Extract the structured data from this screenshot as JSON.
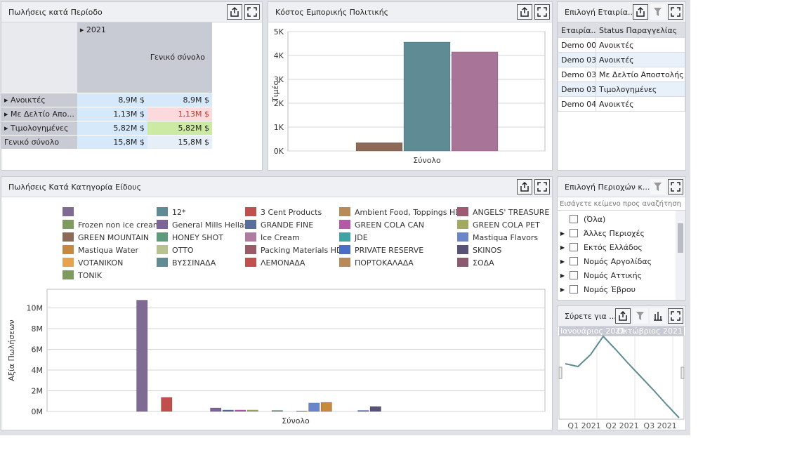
{
  "pivot": {
    "title": "Πωλήσεις κατά Περίοδο",
    "year": "2021",
    "total_header": "Γενικό σύνολο",
    "rows": [
      {
        "label": "Ανοικτές",
        "year": "8,9M $",
        "total": "8,9M $"
      },
      {
        "label": "Με Δελτίο Απο...",
        "year": "1,13M $",
        "total": "1,13M $"
      },
      {
        "label": "Τιμολογημένες",
        "year": "5,82M $",
        "total": "5,82M $"
      }
    ],
    "total_row": {
      "label": "Γενικό σύνολο",
      "year": "15,8M $",
      "total": "15,8M $"
    }
  },
  "company_filter": {
    "title": "Επιλογή Εταιρία...",
    "columns": [
      "Εταιρία...",
      "Status Παραγγελίας"
    ],
    "rows": [
      [
        "Demo 00",
        "Ανοικτές"
      ],
      [
        "Demo 03",
        "Ανοικτές"
      ],
      [
        "Demo 03",
        "Με Δελτίο Αποστολής"
      ],
      [
        "Demo 03",
        "Τιμολογημένες"
      ],
      [
        "Demo 04",
        "Ανοικτές"
      ]
    ]
  },
  "region_filter": {
    "title": "Επιλογή Περιοχών κ...",
    "search_placeholder": "Εισάγετε κείμενο προς αναζήτηση",
    "items": [
      "(Όλα)",
      "Άλλες Περιοχές",
      "Εκτός Ελλάδος",
      "Νομός Αργολίδας",
      "Νομός Αττικής",
      "Νομός Έβρου"
    ]
  },
  "chart_data": [
    {
      "type": "bar",
      "title": "Κόστος Εμπορικής Πολιτικής",
      "y_label": "Τιμές",
      "categories": [
        "Σύνολο"
      ],
      "series": [
        {
          "color": "#8d6a58",
          "values": [
            350
          ]
        },
        {
          "color": "#5f8b94",
          "values": [
            4560
          ]
        },
        {
          "color": "#a87498",
          "values": [
            4150
          ]
        }
      ],
      "ylim": [
        0,
        5000
      ],
      "yticks": [
        {
          "value": 0,
          "label": "0K"
        },
        {
          "value": 1000,
          "label": "1K"
        },
        {
          "value": 2000,
          "label": "2K"
        },
        {
          "value": 3000,
          "label": "3K"
        },
        {
          "value": 4000,
          "label": "4K"
        },
        {
          "value": 5000,
          "label": "5K"
        }
      ],
      "grid": true
    },
    {
      "type": "bar",
      "title": "Πωλήσεις Κατά Κατηγορία Είδους",
      "y_label": "Αξία Πωλήσεων",
      "categories": [
        "Σύνολο"
      ],
      "series": [
        {
          "name": null,
          "color": "#7f6a93",
          "values": [
            10750000
          ]
        },
        {
          "name": "12*",
          "color": "#5f8b94",
          "values": [
            0
          ]
        },
        {
          "name": "3 Cent Products",
          "color": "#c0504d",
          "values": [
            1360000
          ]
        },
        {
          "name": "Ambient Food, Toppings HD",
          "color": "#b88a58",
          "values": [
            0
          ]
        },
        {
          "name": "ANGELS' TREASURE",
          "color": "#9c5b72",
          "values": [
            0
          ]
        },
        {
          "name": "Frozen non ice cream",
          "color": "#7f9a5f",
          "values": [
            0
          ]
        },
        {
          "name": "General Mills Hellas",
          "color": "#7a6596",
          "values": [
            340000
          ]
        },
        {
          "name": "GRANDE FINE",
          "color": "#5a6e9a",
          "values": [
            140000
          ]
        },
        {
          "name": "GREEN COLA CAN",
          "color": "#b459a4",
          "values": [
            140000
          ]
        },
        {
          "name": "GREEN COLA PET",
          "color": "#a2a960",
          "values": [
            140000
          ]
        },
        {
          "name": "GREEN MOUNTAIN",
          "color": "#8d6a58",
          "values": [
            0
          ]
        },
        {
          "name": "HONEY SHOT",
          "color": "#5c9c7c",
          "values": [
            100000
          ]
        },
        {
          "name": "Ice Cream",
          "color": "#b07aa1",
          "values": [
            0
          ]
        },
        {
          "name": "JDE",
          "color": "#3fa3a3",
          "values": [
            50000
          ]
        },
        {
          "name": "Mastiqua Flavors",
          "color": "#6a86c8",
          "values": [
            820000
          ]
        },
        {
          "name": "Mastiqua Water",
          "color": "#c58a3e",
          "values": [
            880000
          ]
        },
        {
          "name": "OTTO",
          "color": "#b8c28e",
          "values": [
            0
          ]
        },
        {
          "name": "Packing Materials HD",
          "color": "#9a5a68",
          "values": [
            0
          ]
        },
        {
          "name": "PRIVATE RESERVE",
          "color": "#4a6ec6",
          "values": [
            100000
          ]
        },
        {
          "name": "SKINOS",
          "color": "#575377",
          "values": [
            480000
          ]
        },
        {
          "name": "VOTANIKON",
          "color": "#e8a24e",
          "values": [
            0
          ]
        },
        {
          "name": "ΒΥΣΣΙΝΑΔΑ",
          "color": "#5f8b94",
          "values": [
            0
          ]
        },
        {
          "name": "ΛΕΜΟΝΑΔΑ",
          "color": "#c0504d",
          "values": [
            0
          ]
        },
        {
          "name": "ΠΟΡΤΟΚΑΛΑΔΑ",
          "color": "#b88a58",
          "values": [
            0
          ]
        },
        {
          "name": "ΣΟΔΑ",
          "color": "#8c5a70",
          "values": [
            0
          ]
        },
        {
          "name": "TONIK",
          "color": "#7f9a5f",
          "values": [
            0
          ]
        }
      ],
      "ylim": [
        0,
        11800000
      ],
      "yticks": [
        {
          "value": 0,
          "label": "0M"
        },
        {
          "value": 2000000,
          "label": "2M"
        },
        {
          "value": 4000000,
          "label": "4M"
        },
        {
          "value": 6000000,
          "label": "6M"
        },
        {
          "value": 8000000,
          "label": "8M"
        },
        {
          "value": 10000000,
          "label": "10M"
        }
      ],
      "grid": true
    },
    {
      "type": "line",
      "title": "Σύρετε για ...",
      "color": "#5f8b94",
      "categories": [
        null,
        null,
        null,
        null,
        null,
        null,
        null,
        null,
        null,
        null
      ],
      "values": [
        77,
        73,
        90,
        116,
        97,
        77,
        58,
        39,
        19,
        0
      ],
      "ylim": [
        0,
        117
      ],
      "x_labels": [
        "Q1 2021",
        "Q2 2021",
        "Q3 2021"
      ],
      "range_start_label": "Ιανουάριος 2021",
      "range_end_label": "Οκτώβριος 2021"
    }
  ]
}
